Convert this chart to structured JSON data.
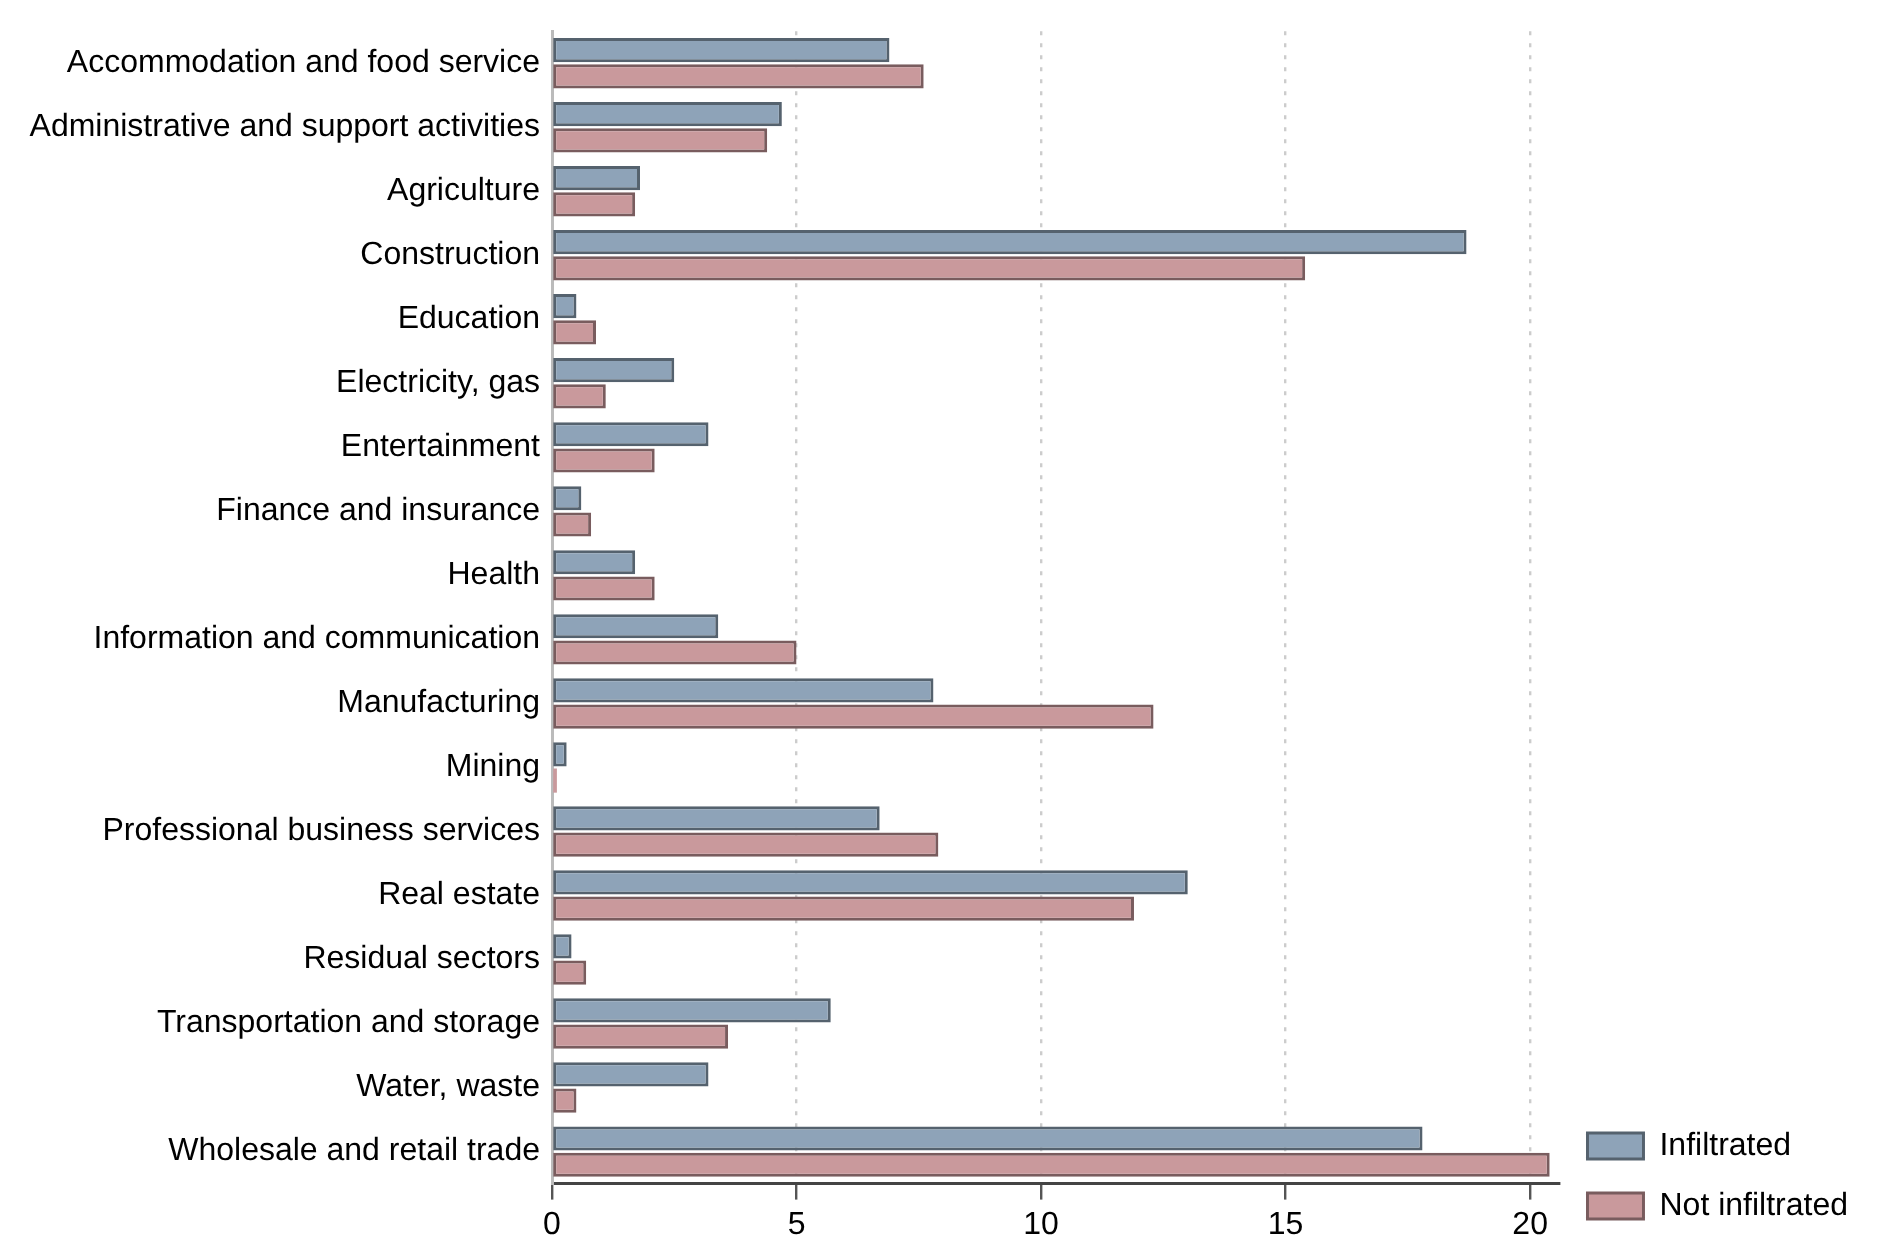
{
  "chart_data": {
    "type": "bar",
    "orientation": "horizontal",
    "categories": [
      "Accommodation and food service",
      "Administrative and support activities",
      "Agriculture",
      "Construction",
      "Education",
      "Electricity, gas",
      "Entertainment",
      "Finance and insurance",
      "Health",
      "Information and communication",
      "Manufacturing",
      "Mining",
      "Professional business services",
      "Real estate",
      "Residual sectors",
      "Transportation and storage",
      "Water, waste",
      "Wholesale and retail trade"
    ],
    "series": [
      {
        "name": "Infiltrated",
        "color": "#8ea3b8",
        "values": [
          6.9,
          4.7,
          1.8,
          18.7,
          0.5,
          2.5,
          3.2,
          0.6,
          1.7,
          3.4,
          7.8,
          0.3,
          6.7,
          13.0,
          0.4,
          5.7,
          3.2,
          17.8
        ]
      },
      {
        "name": "Not infiltrated",
        "color": "#c9999c",
        "values": [
          7.6,
          4.4,
          1.7,
          15.4,
          0.9,
          1.1,
          2.1,
          0.8,
          2.1,
          5.0,
          12.3,
          0.1,
          7.9,
          11.9,
          0.7,
          3.6,
          0.5,
          20.4
        ]
      }
    ],
    "xlim": [
      0,
      20.6
    ],
    "xticks": [
      0,
      5,
      10,
      15,
      20
    ],
    "grid": "x",
    "legend": "bottom right"
  }
}
